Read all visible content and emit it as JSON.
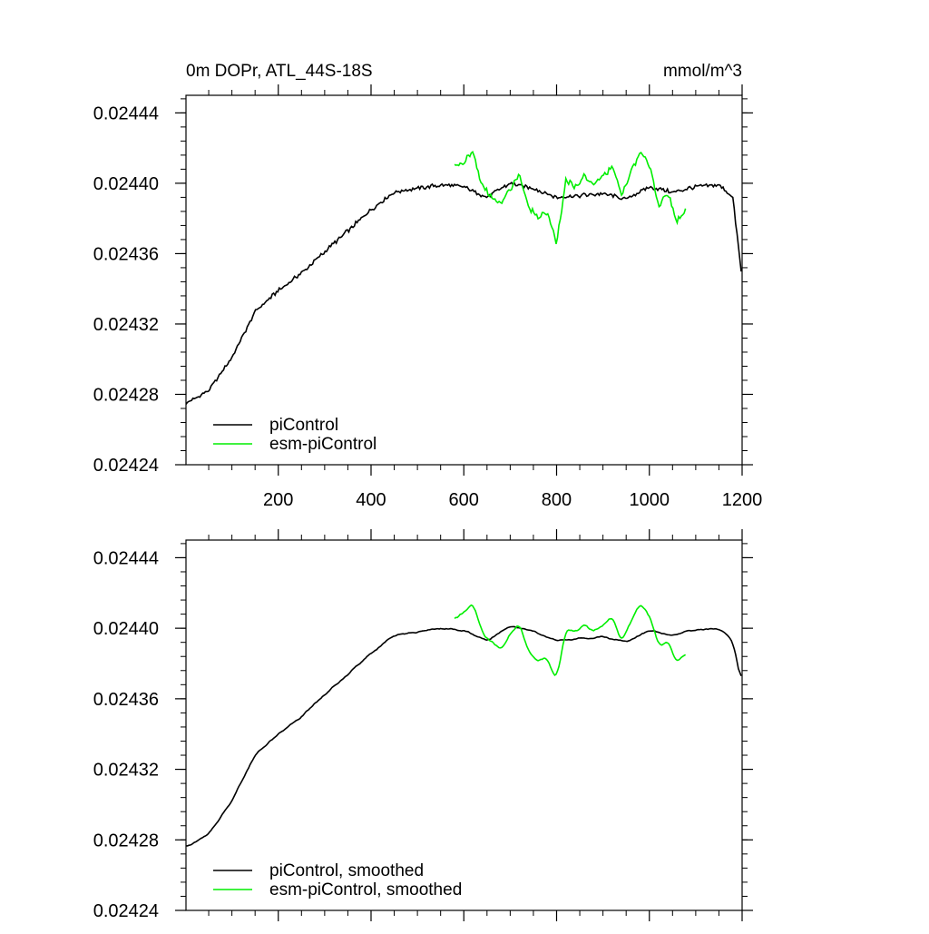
{
  "figure": {
    "title": "0m DOPr, ATL_44S-18S",
    "units": "mmol/m^3"
  },
  "colors": {
    "piControl": "#000000",
    "esm_piControl": "#00ee00",
    "axis": "#000000"
  },
  "chart_data": [
    {
      "type": "line",
      "panel": "top",
      "title": "0m DOPr, ATL_44S-18S",
      "units": "mmol/m^3",
      "xlim": [
        1,
        1200
      ],
      "ylim": [
        0.02424,
        0.02445
      ],
      "x_ticks": [
        200,
        400,
        600,
        800,
        1000,
        1200
      ],
      "x_tick_labels": [
        "200",
        "400",
        "600",
        "800",
        "1000",
        "1200"
      ],
      "y_ticks": [
        0.02424,
        0.02428,
        0.02432,
        0.02436,
        0.0244,
        0.02444
      ],
      "y_tick_labels": [
        "0.02424",
        "0.02428",
        "0.02432",
        "0.02436",
        "0.02440",
        "0.02444"
      ],
      "legend": {
        "placement": "bottom-left",
        "entries": [
          "piControl",
          "esm-piControl"
        ]
      },
      "series": [
        {
          "name": "piControl",
          "color": "#000000",
          "x": [
            1,
            50,
            100,
            150,
            200,
            250,
            300,
            350,
            400,
            450,
            500,
            550,
            600,
            650,
            700,
            750,
            800,
            850,
            900,
            950,
            1000,
            1050,
            1100,
            1150,
            1180,
            1200
          ],
          "values": [
            0.024275,
            0.024282,
            0.024301,
            0.024327,
            0.024339,
            0.024349,
            0.024361,
            0.024373,
            0.024385,
            0.024395,
            0.024397,
            0.024399,
            0.024398,
            0.024392,
            0.0244,
            0.024397,
            0.024392,
            0.024393,
            0.024394,
            0.024391,
            0.024398,
            0.024395,
            0.024398,
            0.024399,
            0.024392,
            0.024345
          ]
        },
        {
          "name": "esm-piControl",
          "color": "#00ee00",
          "x": [
            580,
            600,
            620,
            640,
            660,
            680,
            700,
            720,
            740,
            760,
            780,
            800,
            820,
            840,
            860,
            880,
            900,
            920,
            940,
            960,
            980,
            1000,
            1020,
            1040,
            1060,
            1080
          ],
          "values": [
            0.02441,
            0.024412,
            0.024418,
            0.024398,
            0.024392,
            0.024388,
            0.024397,
            0.024405,
            0.024386,
            0.024381,
            0.024384,
            0.024366,
            0.024402,
            0.024398,
            0.024404,
            0.0244,
            0.024403,
            0.02441,
            0.024393,
            0.024406,
            0.024418,
            0.02441,
            0.024388,
            0.024394,
            0.024378,
            0.024386
          ]
        }
      ]
    },
    {
      "type": "line",
      "panel": "bottom",
      "xlim": [
        1,
        1200
      ],
      "ylim": [
        0.02424,
        0.02445
      ],
      "x_ticks": [
        200,
        400,
        600,
        800,
        1000,
        1200
      ],
      "x_tick_labels": [],
      "y_ticks": [
        0.02424,
        0.02428,
        0.02432,
        0.02436,
        0.0244,
        0.02444
      ],
      "y_tick_labels": [
        "0.02424",
        "0.02428",
        "0.02432",
        "0.02436",
        "0.02440",
        "0.02444"
      ],
      "legend": {
        "placement": "bottom-left",
        "entries": [
          "piControl, smoothed",
          "esm-piControl, smoothed"
        ]
      },
      "series": [
        {
          "name": "piControl, smoothed",
          "color": "#000000",
          "x": [
            1,
            50,
            100,
            150,
            200,
            250,
            300,
            350,
            400,
            450,
            500,
            550,
            600,
            650,
            700,
            750,
            800,
            850,
            900,
            950,
            1000,
            1050,
            1100,
            1150,
            1180,
            1200
          ],
          "values": [
            0.024276,
            0.024283,
            0.024302,
            0.024328,
            0.02434,
            0.02435,
            0.024362,
            0.024374,
            0.024386,
            0.024396,
            0.024398,
            0.0244,
            0.024399,
            0.024393,
            0.024401,
            0.024398,
            0.024393,
            0.024394,
            0.024395,
            0.024392,
            0.024399,
            0.024396,
            0.024399,
            0.0244,
            0.024393,
            0.024366
          ]
        },
        {
          "name": "esm-piControl, smoothed",
          "color": "#00ee00",
          "x": [
            580,
            600,
            620,
            640,
            660,
            680,
            700,
            720,
            740,
            760,
            780,
            800,
            820,
            840,
            860,
            880,
            900,
            920,
            940,
            960,
            980,
            1000,
            1020,
            1040,
            1060,
            1080
          ],
          "values": [
            0.024405,
            0.024409,
            0.024414,
            0.024397,
            0.024392,
            0.024388,
            0.024396,
            0.024403,
            0.024387,
            0.024381,
            0.024383,
            0.02437,
            0.0244,
            0.024398,
            0.024402,
            0.024399,
            0.024401,
            0.024407,
            0.024393,
            0.024403,
            0.024414,
            0.024408,
            0.02439,
            0.024393,
            0.02438,
            0.024386
          ]
        }
      ]
    }
  ]
}
